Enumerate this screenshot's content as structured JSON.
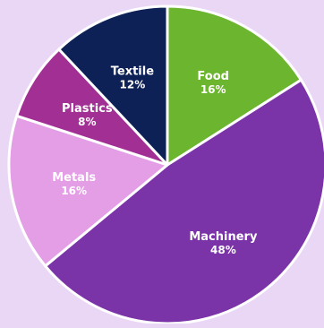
{
  "chart_data": {
    "type": "pie",
    "start_angle_deg": 0,
    "direction": "clockwise",
    "slices": [
      {
        "label": "Food",
        "value": 16,
        "value_label": "16%",
        "color": "#6cb52e"
      },
      {
        "label": "Machinery",
        "value": 48,
        "value_label": "48%",
        "color": "#7b34a8"
      },
      {
        "label": "Metals",
        "value": 16,
        "value_label": "16%",
        "color": "#e39ee6"
      },
      {
        "label": "Plastics",
        "value": 8,
        "value_label": "8%",
        "color": "#a12f94"
      },
      {
        "label": "Textile",
        "value": 12,
        "value_label": "12%",
        "color": "#0e2156"
      }
    ],
    "legend": "none",
    "background": "#ead7f5",
    "slice_border_color": "#ffffff"
  }
}
